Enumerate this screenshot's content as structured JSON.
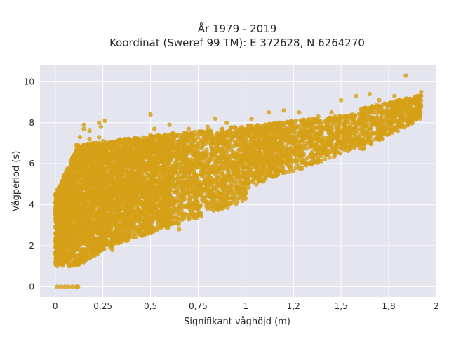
{
  "chart_data": {
    "type": "scatter",
    "title": "År 1979 - 2019",
    "subtitle": "Koordinat (Sweref 99 TM): E 372628, N 6264270",
    "xlabel": "Signifikant våghöjd (m)",
    "ylabel": "Vågperiod (s)",
    "xlim": [
      -0.08,
      2.0
    ],
    "ylim": [
      -0.5,
      10.8
    ],
    "x_ticks": [
      {
        "value": 0,
        "label": "0"
      },
      {
        "value": 0.25,
        "label": "0,25"
      },
      {
        "value": 0.5,
        "label": "0,5"
      },
      {
        "value": 0.75,
        "label": "0,75"
      },
      {
        "value": 1,
        "label": "1"
      },
      {
        "value": 1.25,
        "label": "1,2"
      },
      {
        "value": 1.5,
        "label": "1,5"
      },
      {
        "value": 1.75,
        "label": "1,8"
      },
      {
        "value": 2,
        "label": "2"
      }
    ],
    "y_ticks": [
      {
        "value": 0,
        "label": "0"
      },
      {
        "value": 2,
        "label": "2"
      },
      {
        "value": 4,
        "label": "4"
      },
      {
        "value": 6,
        "label": "6"
      },
      {
        "value": 8,
        "label": "8"
      },
      {
        "value": 10,
        "label": "10"
      }
    ],
    "grid": true,
    "marker_color": "#D4A017",
    "background_color": "#E5E5F0",
    "points_sample": [
      [
        0.01,
        0.0
      ],
      [
        0.03,
        0.0
      ],
      [
        0.05,
        0.0
      ],
      [
        0.07,
        0.0
      ],
      [
        0.09,
        0.0
      ],
      [
        0.11,
        0.0
      ],
      [
        0.12,
        0.0
      ],
      [
        0.0,
        4.1
      ],
      [
        0.0,
        2.6
      ],
      [
        0.0,
        1.6
      ],
      [
        0.02,
        3.6
      ],
      [
        0.03,
        1.5
      ],
      [
        0.04,
        4.4
      ],
      [
        0.05,
        1.3
      ],
      [
        0.06,
        1.2
      ],
      [
        0.06,
        3.0
      ],
      [
        0.07,
        5.0
      ],
      [
        0.08,
        1.1
      ],
      [
        0.08,
        2.2
      ],
      [
        0.09,
        6.2
      ],
      [
        0.1,
        1.1
      ],
      [
        0.1,
        3.8
      ],
      [
        0.11,
        6.9
      ],
      [
        0.12,
        1.2
      ],
      [
        0.12,
        5.2
      ],
      [
        0.13,
        7.3
      ],
      [
        0.14,
        2.1
      ],
      [
        0.14,
        6.1
      ],
      [
        0.15,
        1.3
      ],
      [
        0.15,
        7.7
      ],
      [
        0.16,
        4.5
      ],
      [
        0.17,
        6.9
      ],
      [
        0.18,
        1.4
      ],
      [
        0.18,
        7.2
      ],
      [
        0.19,
        3.0
      ],
      [
        0.2,
        7.0
      ],
      [
        0.2,
        1.5
      ],
      [
        0.21,
        6.2
      ],
      [
        0.22,
        4.2
      ],
      [
        0.22,
        6.8
      ],
      [
        0.23,
        7.3
      ],
      [
        0.24,
        2.0
      ],
      [
        0.25,
        5.5
      ],
      [
        0.25,
        7.1
      ],
      [
        0.26,
        8.1
      ],
      [
        0.27,
        2.6
      ],
      [
        0.28,
        6.4
      ],
      [
        0.29,
        4.6
      ],
      [
        0.3,
        7.0
      ],
      [
        0.3,
        1.8
      ],
      [
        0.31,
        5.9
      ],
      [
        0.32,
        3.4
      ],
      [
        0.33,
        7.0
      ],
      [
        0.35,
        2.4
      ],
      [
        0.35,
        6.7
      ],
      [
        0.37,
        4.3
      ],
      [
        0.38,
        7.2
      ],
      [
        0.4,
        3.0
      ],
      [
        0.4,
        6.1
      ],
      [
        0.42,
        5.0
      ],
      [
        0.44,
        7.0
      ],
      [
        0.45,
        2.7
      ],
      [
        0.46,
        6.6
      ],
      [
        0.48,
        4.2
      ],
      [
        0.5,
        7.4
      ],
      [
        0.5,
        3.0
      ],
      [
        0.52,
        5.5
      ],
      [
        0.55,
        7.3
      ],
      [
        0.56,
        3.6
      ],
      [
        0.6,
        6.8
      ],
      [
        0.6,
        4.4
      ],
      [
        0.62,
        7.5
      ],
      [
        0.65,
        3.8
      ],
      [
        0.68,
        6.2
      ],
      [
        0.7,
        7.7
      ],
      [
        0.72,
        4.8
      ],
      [
        0.75,
        7.0
      ],
      [
        0.75,
        3.8
      ],
      [
        0.78,
        5.6
      ],
      [
        0.8,
        7.8
      ],
      [
        0.82,
        4.6
      ],
      [
        0.85,
        6.9
      ],
      [
        0.88,
        5.2
      ],
      [
        0.9,
        8.0
      ],
      [
        0.92,
        4.8
      ],
      [
        0.95,
        6.5
      ],
      [
        0.98,
        7.5
      ],
      [
        1.0,
        5.4
      ],
      [
        1.03,
        8.2
      ],
      [
        1.05,
        6.2
      ],
      [
        1.08,
        5.6
      ],
      [
        1.1,
        7.3
      ],
      [
        1.12,
        8.5
      ],
      [
        1.15,
        6.0
      ],
      [
        1.18,
        7.4
      ],
      [
        1.2,
        8.6
      ],
      [
        1.22,
        6.4
      ],
      [
        1.25,
        7.0
      ],
      [
        1.28,
        8.5
      ],
      [
        1.3,
        6.7
      ],
      [
        1.32,
        7.6
      ],
      [
        1.35,
        6.6
      ],
      [
        1.38,
        8.3
      ],
      [
        1.4,
        7.1
      ],
      [
        1.42,
        7.7
      ],
      [
        1.45,
        8.5
      ],
      [
        1.48,
        7.0
      ],
      [
        1.5,
        7.6
      ],
      [
        1.52,
        8.3
      ],
      [
        1.55,
        7.3
      ],
      [
        1.58,
        8.0
      ],
      [
        1.6,
        7.1
      ],
      [
        1.62,
        8.4
      ],
      [
        1.65,
        7.7
      ],
      [
        1.68,
        8.0
      ],
      [
        1.7,
        7.5
      ],
      [
        1.72,
        8.6
      ],
      [
        1.75,
        8.0
      ],
      [
        1.78,
        8.2
      ],
      [
        1.8,
        8.7
      ],
      [
        1.82,
        8.4
      ],
      [
        1.84,
        10.3
      ],
      [
        1.85,
        9.0
      ],
      [
        1.88,
        9.1
      ],
      [
        1.9,
        9.3
      ],
      [
        1.92,
        9.5
      ],
      [
        0.15,
        7.9
      ],
      [
        0.18,
        7.6
      ],
      [
        0.23,
        8.0
      ],
      [
        0.24,
        7.8
      ],
      [
        0.52,
        7.7
      ],
      [
        0.6,
        7.9
      ],
      [
        0.5,
        8.4
      ],
      [
        1.5,
        9.1
      ],
      [
        1.58,
        9.3
      ],
      [
        1.65,
        9.4
      ],
      [
        1.7,
        9.1
      ],
      [
        1.78,
        9.3
      ],
      [
        0.84,
        8.2
      ],
      [
        0.42,
        3.7
      ],
      [
        0.45,
        2.6
      ],
      [
        0.62,
        3.1
      ],
      [
        0.65,
        2.8
      ],
      [
        0.7,
        3.9
      ],
      [
        0.8,
        3.8
      ],
      [
        0.9,
        4.2
      ]
    ]
  }
}
